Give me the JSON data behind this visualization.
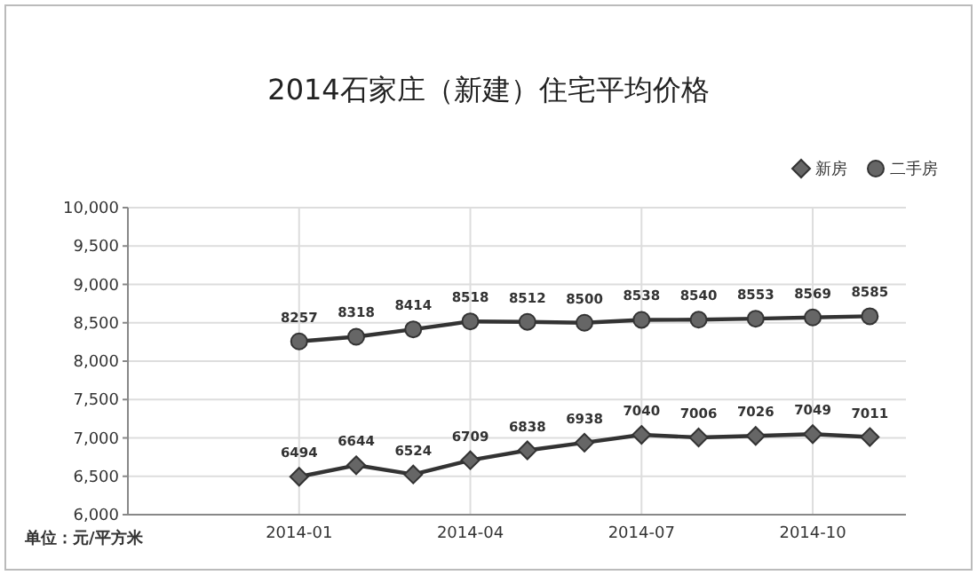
{
  "chart_data": {
    "type": "line",
    "title": "2014石家庄（新建）住宅平均价格",
    "x": [
      "2014-01",
      "2014-02",
      "2014-03",
      "2014-04",
      "2014-05",
      "2014-06",
      "2014-07",
      "2014-08",
      "2014-09",
      "2014-10",
      "2014-11"
    ],
    "series": [
      {
        "name": "新房",
        "color": "#333333",
        "marker": "diamond",
        "values": [
          6494,
          6644,
          6524,
          6709,
          6838,
          6938,
          7040,
          7006,
          7026,
          7049,
          7011
        ]
      },
      {
        "name": "二手房",
        "color": "#333333",
        "marker": "circle",
        "values": [
          8257,
          8318,
          8414,
          8518,
          8512,
          8500,
          8538,
          8540,
          8553,
          8569,
          8585
        ]
      }
    ],
    "xlim": [
      "2013-10",
      "2014-11-20"
    ],
    "xticks": [
      {
        "value": "2014-01",
        "label": "2014-01"
      },
      {
        "value": "2014-04",
        "label": "2014-04"
      },
      {
        "value": "2014-07",
        "label": "2014-07"
      },
      {
        "value": "2014-10",
        "label": "2014-10"
      }
    ],
    "ylim": [
      6000,
      10000
    ],
    "yticks": [
      {
        "value": 6000,
        "label": "6,000"
      },
      {
        "value": 6500,
        "label": "6,500"
      },
      {
        "value": 7000,
        "label": "7,000"
      },
      {
        "value": 7500,
        "label": "7,500"
      },
      {
        "value": 8000,
        "label": "8,000"
      },
      {
        "value": 8500,
        "label": "8,500"
      },
      {
        "value": 9000,
        "label": "9,000"
      },
      {
        "value": 9500,
        "label": "9,500"
      },
      {
        "value": 10000,
        "label": "10,000"
      }
    ],
    "grid": true,
    "legend": "top right",
    "data_labels": true,
    "line_style": "solid",
    "annotations": [
      "单位：元/平方米"
    ]
  }
}
